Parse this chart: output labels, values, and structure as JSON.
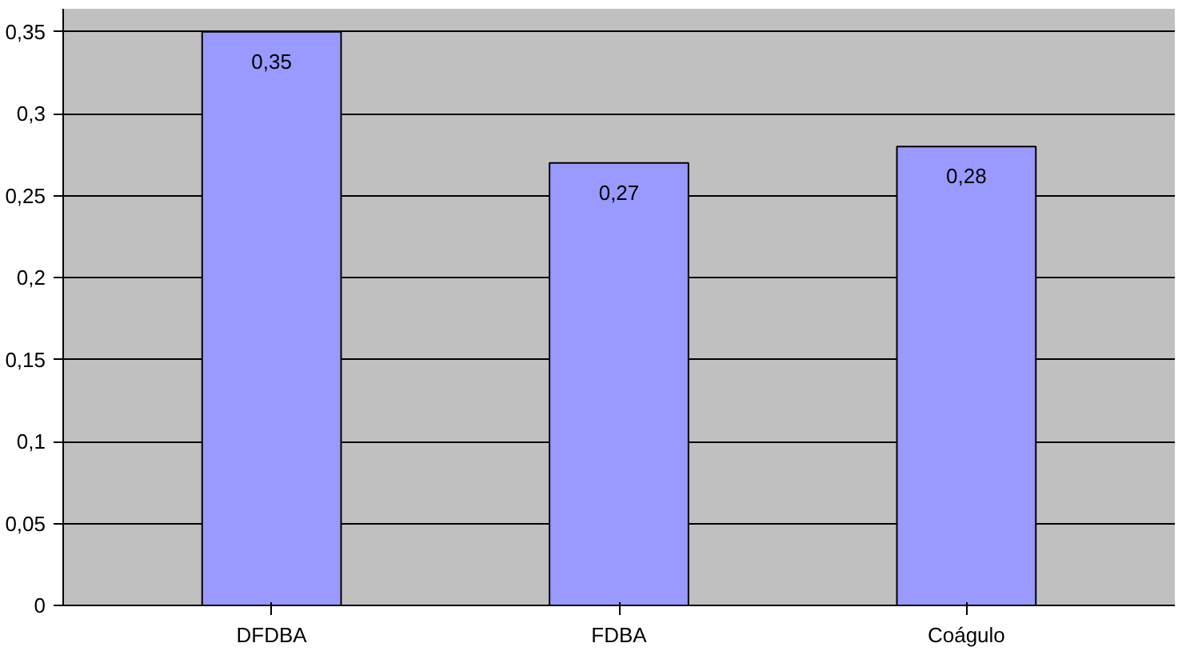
{
  "chart_data": {
    "type": "bar",
    "categories": [
      "DFDBA",
      "FDBA",
      "Coágulo"
    ],
    "values": [
      0.35,
      0.27,
      0.28
    ],
    "value_labels": [
      "0,35",
      "0,27",
      "0,28"
    ],
    "color": "#9999ff",
    "ylim": [
      0,
      0.35
    ],
    "yticks": [
      {
        "value": 0,
        "label": "0"
      },
      {
        "value": 0.05,
        "label": "0,05"
      },
      {
        "value": 0.1,
        "label": "0,1"
      },
      {
        "value": 0.15,
        "label": "0,15"
      },
      {
        "value": 0.2,
        "label": "0,2"
      },
      {
        "value": 0.25,
        "label": "0,25"
      },
      {
        "value": 0.3,
        "label": "0,3"
      },
      {
        "value": 0.35,
        "label": "0,35"
      }
    ],
    "grid": "y"
  }
}
